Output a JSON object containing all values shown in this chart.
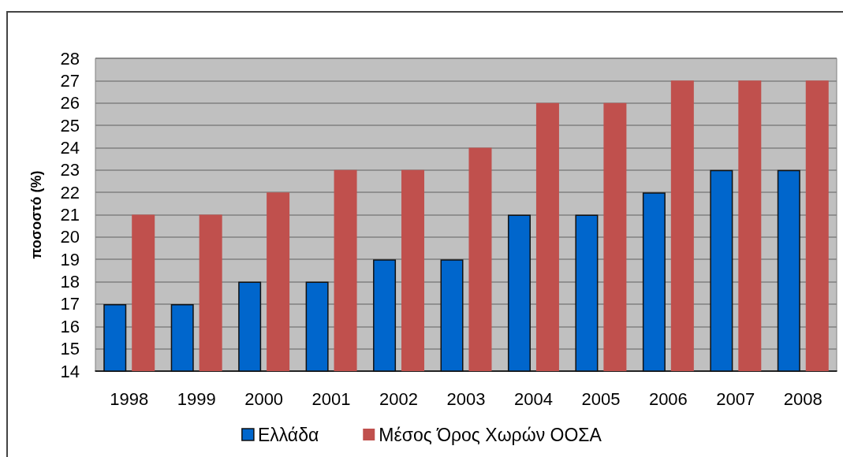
{
  "chart_data": {
    "type": "bar",
    "ylabel": "ποσοστό (%)",
    "categories": [
      "1998",
      "1999",
      "2000",
      "2001",
      "2002",
      "2003",
      "2004",
      "2005",
      "2006",
      "2007",
      "2008"
    ],
    "series": [
      {
        "name": "Ελλάδα",
        "color": "#0066cc",
        "values": [
          17,
          17,
          18,
          18,
          19,
          19,
          21,
          21,
          22,
          23,
          23
        ]
      },
      {
        "name": "Μέσος Όρος Χωρών ΟΟΣΑ",
        "color": "#c0504d",
        "values": [
          21,
          21,
          22,
          23,
          23,
          24,
          26,
          26,
          27,
          27,
          27
        ]
      }
    ],
    "ylim": [
      14,
      28
    ],
    "yticks": [
      14,
      15,
      16,
      17,
      18,
      19,
      20,
      21,
      22,
      23,
      24,
      25,
      26,
      27,
      28
    ],
    "grid": "y",
    "legend": "bottom"
  }
}
